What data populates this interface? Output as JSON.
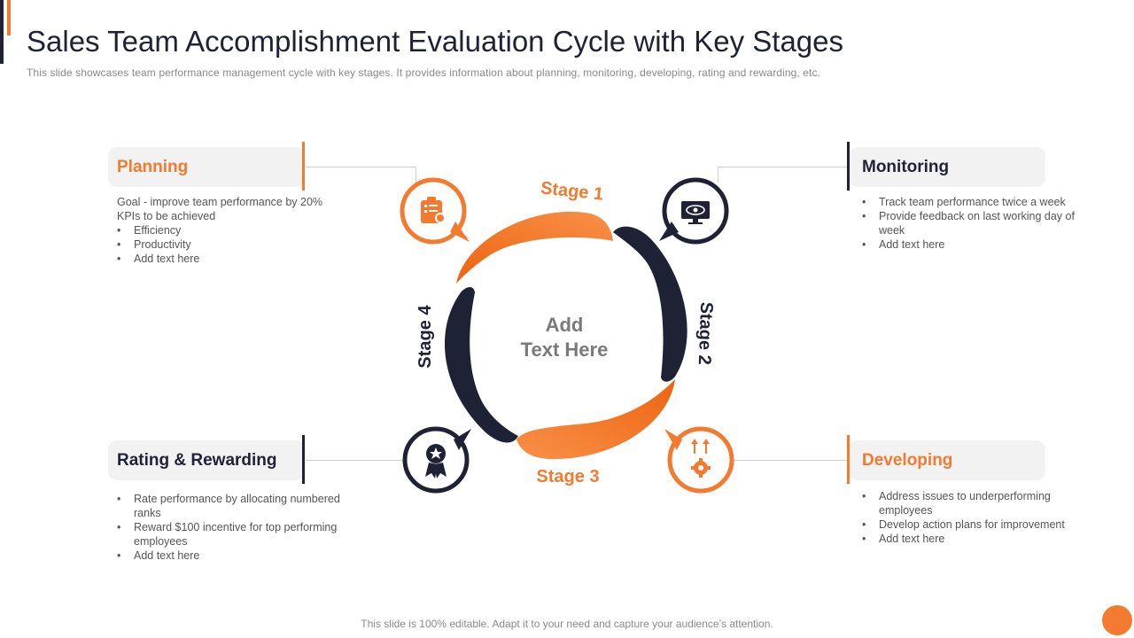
{
  "header": {
    "title": "Sales Team Accomplishment Evaluation Cycle with Key Stages",
    "subtitle": "This slide showcases team performance  management  cycle with key stages. It provides  information  about planning,  monitoring,  developing,  rating and rewarding,  etc."
  },
  "center_text": {
    "line1": "Add",
    "line2": "Text Here"
  },
  "stages": {
    "stage1": "Stage 1",
    "stage2": "Stage 2",
    "stage3": "Stage 3",
    "stage4": "Stage 4"
  },
  "colors": {
    "orange": "#f37a2f",
    "navy": "#1f2235"
  },
  "cards": {
    "planning": {
      "title": "Planning",
      "icon": "clipboard-checklist-icon",
      "intro": [
        "Goal - improve  team performance  by 20%",
        "KPIs to be achieved"
      ],
      "bullets": [
        "Efficiency",
        "Productivity",
        "Add text here"
      ]
    },
    "monitoring": {
      "title": "Monitoring",
      "icon": "monitor-eye-icon",
      "bullets": [
        "Track team performance  twice a week",
        "Provide  feedback on last working day of week",
        "Add text here"
      ]
    },
    "rating": {
      "title": "Rating & Rewarding",
      "icon": "award-ribbon-icon",
      "bullets": [
        "Rate performance  by allocating numbered ranks",
        "Reward  $100 incentive for top performing employees",
        "Add text here"
      ]
    },
    "developing": {
      "title": "Developing",
      "icon": "gear-arrows-icon",
      "bullets": [
        "Address issues to underperforming employees",
        "Develop  action plans for improvement",
        "Add text here"
      ]
    }
  },
  "footer": {
    "note": "This slide is 100% editable. Adapt it to your need and capture your audience’s attention."
  }
}
